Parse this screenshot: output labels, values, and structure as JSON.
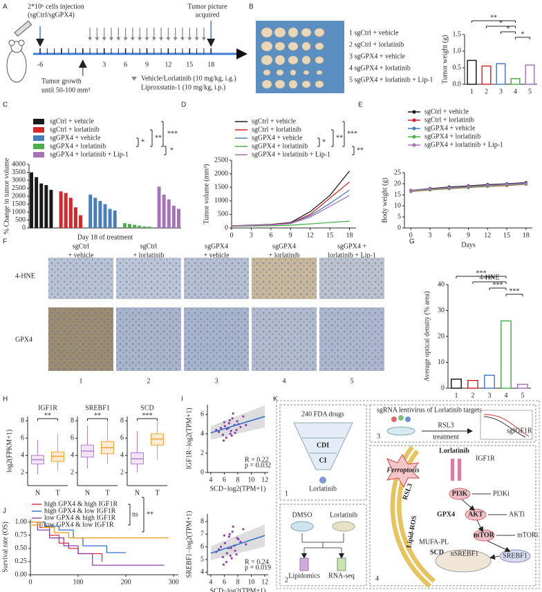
{
  "panel_labels": [
    "A",
    "B",
    "C",
    "D",
    "E",
    "F",
    "G",
    "H",
    "I",
    "J",
    "K"
  ],
  "panel_a": {
    "injection": "2*10⁶ cells injection",
    "injection_group": "(sgCtrl/sgGPX4)",
    "picture": [
      "Tumor picture",
      "acquired"
    ],
    "growth": [
      "Tumor growth",
      "until 50-100 mm³"
    ],
    "treatment": [
      "Vehicle/Lorlatinib (10 mg/kg, i.g.)",
      "Liproxstatin-1 (10 mg/kg, i.p.)"
    ],
    "days": [
      -6,
      0,
      3,
      6,
      9,
      12,
      15,
      18
    ]
  },
  "panel_b": {
    "groups": [
      "1 sgCtrl + vehicle",
      "2 sgCtrl + lorlatinib",
      "3 sgGPX4 + vehicle",
      "4 sgGPX4 + lorlatinib",
      "5 sgGPX4 + lorlatinib + Lip-1"
    ]
  },
  "panel_f": {
    "columns": [
      [
        "sgCtrl",
        "+ vehicle"
      ],
      [
        "sgCtrl",
        "+ lorlatinib"
      ],
      [
        "sgGPX4",
        "+ vehicle"
      ],
      [
        "sgGPX4",
        "+ lorlatinib"
      ],
      [
        "sgGPX4 +",
        "lorlatinib + Lip-1"
      ]
    ],
    "rows": [
      "4-HNE",
      "GPX4"
    ],
    "numbers": [
      "1",
      "2",
      "3",
      "4",
      "5"
    ]
  },
  "panel_k": {
    "box1": {
      "drugs": "240 FDA drugs",
      "cdi": "CDI",
      "ci": "CI",
      "drug": "Lorlatinib",
      "number": "1"
    },
    "box2": {
      "control": "DMSO",
      "drug": "Lorlatinib",
      "omics": [
        "Lipidomics",
        "RNA-seq"
      ],
      "number": "2"
    },
    "box3": {
      "title": "sgRNA lentivirus of Lorlatinib targets",
      "agent": "RSL3",
      "step": "treatment",
      "curve": "sgIGF1R",
      "number": "3"
    },
    "box4": {
      "drug": "Lorlatinib",
      "receptor": "IGF1R",
      "death": "Ferroptosis",
      "inducer": "RSL3",
      "ros": "Lipid-ROS",
      "pathway": [
        "PI3K",
        "AKT",
        "mTOR"
      ],
      "inhibitors": [
        "PI3Ki",
        "AKTi",
        "mTORi"
      ],
      "gpx4": "GPX4",
      "lipid": "MUFA-PL",
      "scd": "SCD",
      "nuclear": "nSREBF1",
      "factor": "SREBF1",
      "number": "4"
    }
  },
  "chart_data": [
    {
      "type": "bar",
      "ylabel": "Tumor weight (g)",
      "categories": [
        "1",
        "2",
        "3",
        "4",
        "5"
      ],
      "values": [
        0.72,
        0.55,
        0.62,
        0.17,
        0.58
      ],
      "colors": [
        "#1a1a1a",
        "#d62728",
        "#4a7ebb",
        "#4daf4a",
        "#a673b8"
      ],
      "ylim": [
        0,
        1.5
      ],
      "yticks": [
        {
          "value": 0,
          "label": "0.0"
        },
        0.5,
        {
          "value": 1,
          "label": "1.0"
        },
        1.5
      ],
      "annotations": [
        "**",
        "*",
        "*",
        "*"
      ]
    },
    {
      "type": "grouped-bar",
      "ylabel": "% Change in tumor volume",
      "xlabel": "Day 18 of treatment",
      "ylim": [
        0,
        4000
      ],
      "yticks": [
        0,
        500,
        1000,
        1500,
        2000,
        2500,
        3000,
        3500,
        4000
      ],
      "annotations": [
        "***",
        "**",
        "*",
        "*"
      ],
      "series": [
        {
          "name": "sgCtrl + vehicle",
          "color": "#1a1a1a",
          "values": [
            3500,
            3200,
            2800,
            2700,
            2400
          ]
        },
        {
          "name": "sgCtrl + lorlatinib",
          "color": "#d62728",
          "values": [
            2300,
            2200,
            1900,
            1300,
            800
          ]
        },
        {
          "name": "sgGPX4 + vehicle",
          "color": "#4a7ebb",
          "values": [
            2100,
            1900,
            1700,
            1500,
            1200,
            1100
          ]
        },
        {
          "name": "sgGPX4 + lorlatinib",
          "color": "#4daf4a",
          "values": [
            300,
            250,
            200,
            150,
            100,
            80
          ]
        },
        {
          "name": "sgGPX4 + lorlatinib + Lip-1",
          "color": "#a673b8",
          "values": [
            2600,
            2100,
            1800,
            1400,
            1200
          ]
        }
      ]
    },
    {
      "type": "line",
      "ylabel": "Tumor volume (mm³)",
      "x": [
        0,
        3,
        6,
        9,
        12,
        15,
        18
      ],
      "xlim": [
        0,
        19
      ],
      "xticks": [
        0,
        3,
        6,
        9,
        12,
        15,
        18
      ],
      "ylim": [
        0,
        2500
      ],
      "yticks": [
        0,
        500,
        1000,
        1500,
        2000,
        2500
      ],
      "annotations": [
        "***",
        "**",
        "*",
        "**"
      ],
      "series": [
        {
          "name": "sgCtrl + vehicle",
          "color": "#1a1a1a",
          "values": [
            80,
            100,
            130,
            200,
            600,
            1200,
            2100
          ]
        },
        {
          "name": "sgCtrl + lorlatinib",
          "color": "#d62728",
          "values": [
            80,
            90,
            120,
            180,
            500,
            1100,
            1700
          ]
        },
        {
          "name": "sgGPX4 + vehicle",
          "color": "#4a7ebb",
          "values": [
            70,
            90,
            110,
            170,
            450,
            900,
            1400
          ]
        },
        {
          "name": "sgGPX4 + lorlatinib",
          "color": "#4daf4a",
          "values": [
            60,
            70,
            80,
            100,
            150,
            200,
            250
          ]
        },
        {
          "name": "sgGPX4 + lorlatinib + Lip-1",
          "color": "#a673b8",
          "values": [
            70,
            85,
            110,
            160,
            400,
            800,
            1200
          ]
        }
      ]
    },
    {
      "type": "line",
      "ylabel": "Body weight (g)",
      "xlabel": "Days",
      "x": [
        0,
        3,
        6,
        9,
        12,
        15,
        18
      ],
      "xlim": [
        -1,
        19
      ],
      "xticks": [
        0,
        3,
        6,
        9,
        12,
        15,
        18
      ],
      "ylim": [
        0,
        25
      ],
      "yticks": [
        0,
        5,
        10,
        15,
        20,
        25
      ],
      "series": [
        {
          "name": "sgCtrl + vehicle",
          "color": "#1a1a1a",
          "values": [
            17,
            17.8,
            18.5,
            19,
            19.6,
            20,
            20.5
          ]
        },
        {
          "name": "sgCtrl + lorlatinib",
          "color": "#d62728",
          "values": [
            16.5,
            17.2,
            17.8,
            18.3,
            18.8,
            19.2,
            19.8
          ]
        },
        {
          "name": "sgGPX4 + vehicle",
          "color": "#4a7ebb",
          "values": [
            16.8,
            17.5,
            18,
            18.6,
            19.2,
            19.8,
            20.2
          ]
        },
        {
          "name": "sgGPX4 + lorlatinib",
          "color": "#4daf4a",
          "values": [
            16.6,
            17.3,
            17.9,
            18.4,
            18.9,
            19.4,
            19.9
          ]
        },
        {
          "name": "sgGPX4 + lorlatinib + Lip-1",
          "color": "#a673b8",
          "values": [
            16.9,
            17.6,
            18.2,
            18.7,
            19.3,
            19.7,
            20.1
          ]
        }
      ]
    },
    {
      "type": "bar",
      "title": "4-HNE",
      "ylabel": "Average optical density (% area)",
      "categories": [
        "1",
        "2",
        "3",
        "4",
        "5"
      ],
      "values": [
        3.5,
        3,
        5,
        26,
        1.5
      ],
      "colors": [
        "#1a1a1a",
        "#d62728",
        "#4a7ebb",
        "#4daf4a",
        "#a673b8"
      ],
      "ylim": [
        0,
        40
      ],
      "yticks": [
        0,
        10,
        20,
        30,
        40
      ],
      "annotations": [
        "***",
        "***",
        "***",
        "***"
      ]
    },
    {
      "type": "box",
      "title": "IGF1R",
      "ylabel": "log2(FPKM+1)",
      "categories": [
        "N",
        "T"
      ],
      "colors": [
        "#b47fd0",
        "#f0a030"
      ],
      "ylim": [
        0.5,
        8.5
      ],
      "yticks": [
        2,
        4,
        6,
        8
      ],
      "annotations": [
        "**"
      ],
      "boxes": [
        {
          "min": 1.8,
          "q1": 3.0,
          "median": 3.5,
          "q3": 4.0,
          "max": 5.8
        },
        {
          "min": 2.2,
          "q1": 3.3,
          "median": 3.9,
          "q3": 4.4,
          "max": 6.5
        }
      ]
    },
    {
      "type": "box",
      "title": "SREBF1",
      "categories": [
        "N",
        "T"
      ],
      "colors": [
        "#b47fd0",
        "#f0a030"
      ],
      "ylim": [
        0.5,
        8.5
      ],
      "yticks": [
        2,
        4,
        6,
        8
      ],
      "annotations": [
        "**"
      ],
      "boxes": [
        {
          "min": 2.5,
          "q1": 3.8,
          "median": 4.5,
          "q3": 5.2,
          "max": 7.5
        },
        {
          "min": 3.0,
          "q1": 4.2,
          "median": 4.9,
          "q3": 5.6,
          "max": 8.0
        }
      ]
    },
    {
      "type": "box",
      "title": "SCD",
      "categories": [
        "N",
        "T"
      ],
      "colors": [
        "#b47fd0",
        "#f0a030"
      ],
      "ylim": [
        0.5,
        8.5
      ],
      "yticks": [
        2,
        4,
        6,
        8
      ],
      "annotations": [
        "***"
      ],
      "boxes": [
        {
          "min": 2.0,
          "q1": 3.0,
          "median": 3.6,
          "q3": 4.3,
          "max": 6.8
        },
        {
          "min": 3.5,
          "q1": 5.2,
          "median": 5.9,
          "q3": 6.5,
          "max": 8.0
        }
      ]
    },
    {
      "type": "scatter",
      "ylabel": "IGF1R−log2(TPM+1)",
      "xlabel": "SCD−log2(TPM+1)",
      "xlim": [
        3.5,
        12.5
      ],
      "xticks": [
        4,
        6,
        8,
        10,
        12
      ],
      "ylim": [
        0,
        7
      ],
      "yticks": [
        0,
        2,
        4,
        6
      ],
      "color": "#8b3fa8",
      "annotations": [
        "R = 0.22",
        "p = 0.032"
      ],
      "x": [
        5.2,
        5.8,
        6.1,
        6.4,
        6.7,
        7.0,
        7.2,
        7.5,
        7.8,
        8.1,
        6.3,
        5.5,
        7.1,
        6.8,
        7.6,
        8.4,
        6.0,
        6.9,
        7.3,
        5.9,
        9.2,
        4.8,
        7.9,
        6.6,
        8.8
      ],
      "y": [
        4.2,
        3.9,
        4.8,
        4.5,
        5.1,
        4.3,
        5.6,
        4.9,
        4.4,
        5.0,
        3.6,
        4.6,
        3.8,
        5.4,
        4.1,
        4.7,
        5.2,
        4.0,
        6.1,
        3.3,
        4.9,
        4.4,
        5.3,
        4.6,
        5.8
      ],
      "trend": {
        "x": [
          4,
          12
        ],
        "y": [
          4.1,
          5.8
        ]
      }
    },
    {
      "type": "scatter",
      "ylabel": "SREBF1−log2(TPM+1)",
      "xlabel": "SCD−log2(TPM+1)",
      "xlim": [
        3.5,
        12.5
      ],
      "xticks": [
        4,
        6,
        8,
        10,
        12
      ],
      "ylim": [
        3.8,
        8.6
      ],
      "yticks": [
        4,
        5,
        6,
        7,
        8
      ],
      "color": "#8b3fa8",
      "annotations": [
        "R = 0.24",
        "p = 0.019"
      ],
      "x": [
        5.2,
        5.8,
        6.1,
        6.4,
        6.7,
        7.0,
        7.2,
        7.5,
        7.8,
        8.1,
        6.3,
        5.5,
        7.1,
        6.8,
        7.6,
        8.4,
        6.0,
        6.9,
        7.3,
        5.9,
        9.2,
        4.8,
        7.9,
        6.6,
        8.8
      ],
      "y": [
        5.8,
        5.2,
        6.3,
        5.5,
        6.8,
        5.9,
        7.2,
        6.1,
        5.4,
        6.6,
        4.8,
        6.0,
        5.1,
        7.0,
        5.7,
        6.4,
        6.9,
        5.3,
        7.6,
        4.6,
        6.2,
        5.6,
        6.7,
        5.9,
        7.4
      ],
      "trend": {
        "x": [
          4,
          12
        ],
        "y": [
          5.5,
          6.9
        ]
      }
    },
    {
      "type": "survival",
      "ylabel": "Survival rate (OS)",
      "xlim": [
        0,
        310
      ],
      "xticks": [
        0,
        100,
        200,
        300
      ],
      "ylim": [
        0,
        1.05
      ],
      "yticks": [
        {
          "value": 0,
          "label": "0.00"
        },
        {
          "value": 0.25,
          "label": "0.25"
        },
        {
          "value": 0.5,
          "label": "0.50"
        },
        {
          "value": 0.75,
          "label": "0.75"
        },
        {
          "value": 1,
          "label": "1.00"
        }
      ],
      "annotations": [
        "ns",
        "**"
      ],
      "series": [
        {
          "name": "high GPX4 & high IGF1R",
          "color": "#e0283a",
          "x": [
            0,
            20,
            40,
            60,
            80,
            100,
            150
          ],
          "values": [
            1,
            0.9,
            0.75,
            0.6,
            0.5,
            0.4,
            0.25
          ]
        },
        {
          "name": "high GPX4 & low IGF1R",
          "color": "#2f6fd0",
          "x": [
            0,
            30,
            60,
            90,
            110,
            160,
            200
          ],
          "values": [
            1,
            0.92,
            0.85,
            0.7,
            0.55,
            0.42,
            0.42
          ]
        },
        {
          "name": "low GPX4 & high IGF1R",
          "color": "#8e3fb0",
          "x": [
            0,
            15,
            40,
            70,
            100,
            130,
            280
          ],
          "values": [
            1,
            0.85,
            0.7,
            0.55,
            0.4,
            0.18,
            0.18
          ]
        },
        {
          "name": "low GPX4 & low IGF1R",
          "color": "#f0a020",
          "x": [
            0,
            25,
            50,
            80,
            290
          ],
          "values": [
            1,
            0.9,
            0.8,
            0.7,
            0.7
          ]
        }
      ]
    }
  ]
}
